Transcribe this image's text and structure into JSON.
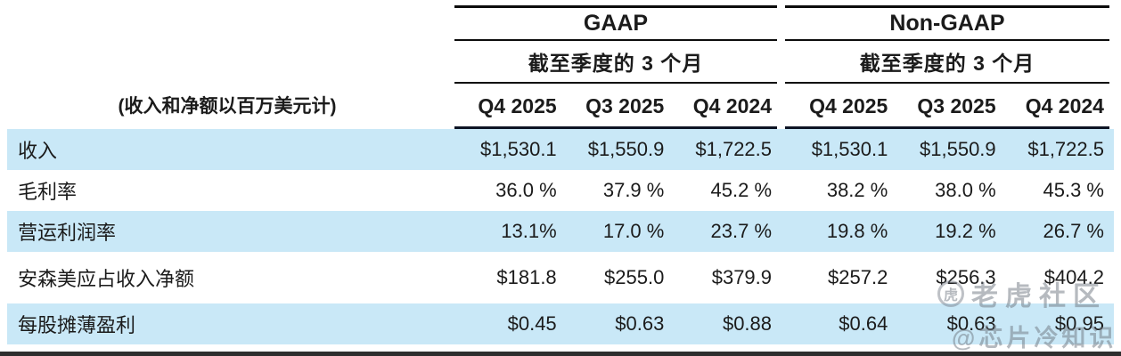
{
  "chart_data": {
    "type": "table",
    "title": "",
    "row_header_note": "(收入和净额以百万美元计)",
    "column_groups": [
      {
        "title": "GAAP",
        "subtitle": "截至季度的 3 个月",
        "columns": [
          "Q4 2025",
          "Q3 2025",
          "Q4 2024"
        ]
      },
      {
        "title": "Non-GAAP",
        "subtitle": "截至季度的 3 个月",
        "columns": [
          "Q4 2025",
          "Q3 2025",
          "Q4 2024"
        ]
      }
    ],
    "rows": [
      {
        "label": "收入",
        "gaap": [
          "$1,530.1",
          "$1,550.9",
          "$1,722.5"
        ],
        "non_gaap": [
          "$1,530.1",
          "$1,550.9",
          "$1,722.5"
        ]
      },
      {
        "label": "毛利率",
        "gaap": [
          "36.0 %",
          "37.9 %",
          "45.2 %"
        ],
        "non_gaap": [
          "38.2 %",
          "38.0 %",
          "45.3 %"
        ]
      },
      {
        "label": "营运利润率",
        "gaap": [
          "13.1%",
          "17.0 %",
          "23.7 %"
        ],
        "non_gaap": [
          "19.8 %",
          "19.2 %",
          "26.7 %"
        ]
      },
      {
        "label": "安森美应占收入净额",
        "gaap": [
          "$181.8",
          "$255.0",
          "$379.9"
        ],
        "non_gaap": [
          "$257.2",
          "$256.3",
          "$404.2"
        ]
      },
      {
        "label": "每股摊薄盈利",
        "gaap": [
          "$0.45",
          "$0.63",
          "$0.88"
        ],
        "non_gaap": [
          "$0.64",
          "$0.63",
          "$0.95"
        ]
      }
    ],
    "layout": {
      "shaded_row_indexes": [
        0,
        2,
        4
      ],
      "shaded_row_color": "#c9e8f7",
      "rule_color": "#0c0c0c"
    }
  },
  "watermark": {
    "logo_glyph": "虎",
    "community": "老虎社区",
    "handle": "@芯片冷知识"
  }
}
